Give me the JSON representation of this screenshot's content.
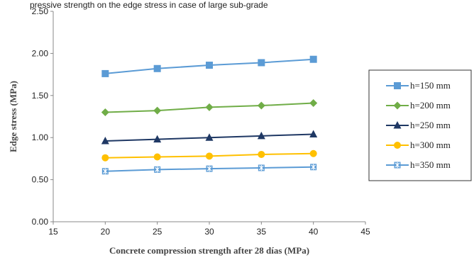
{
  "header_text": "pressive strength on the edge stress in case of large sub-grade",
  "chart_data": {
    "type": "line",
    "xlabel": "Concrete compression strength after 28 días (MPa)",
    "ylabel": "Edge stress (MPa)",
    "xlim": [
      15,
      45
    ],
    "ylim": [
      0,
      2.5
    ],
    "x_ticks": [
      "15",
      "20",
      "25",
      "30",
      "35",
      "40",
      "45"
    ],
    "y_ticks": [
      "0.00",
      "0.50",
      "1.00",
      "1.50",
      "2.00",
      "2.50"
    ],
    "grid": false,
    "legend_position": "right",
    "x": [
      20,
      25,
      30,
      35,
      40
    ],
    "series": [
      {
        "name": "h=150 mm",
        "values": [
          1.76,
          1.82,
          1.86,
          1.89,
          1.93
        ],
        "color": "#5b9bd5",
        "marker": "square"
      },
      {
        "name": "h=200 mm",
        "values": [
          1.3,
          1.32,
          1.36,
          1.38,
          1.41
        ],
        "color": "#70ad47",
        "marker": "diamond"
      },
      {
        "name": "h=250 mm",
        "values": [
          0.96,
          0.98,
          1.0,
          1.02,
          1.04
        ],
        "color": "#1f3864",
        "marker": "triangle"
      },
      {
        "name": "h=300 mm",
        "values": [
          0.76,
          0.77,
          0.78,
          0.8,
          0.81
        ],
        "color": "#ffc000",
        "marker": "circle"
      },
      {
        "name": "h=350 mm",
        "values": [
          0.6,
          0.62,
          0.63,
          0.64,
          0.65
        ],
        "color": "#5b9bd5",
        "marker": "asterisk"
      }
    ]
  }
}
